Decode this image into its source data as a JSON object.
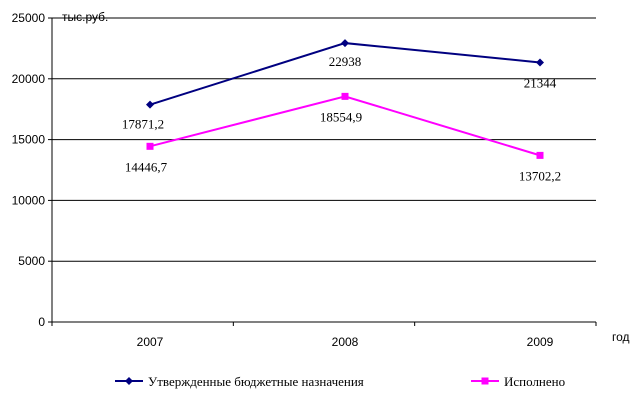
{
  "chart_data": {
    "type": "line",
    "categories": [
      "2007",
      "2008",
      "2009"
    ],
    "series": [
      {
        "name": "Утвержденные бюджетные назначения",
        "values": [
          17871.2,
          22938,
          21344
        ],
        "labels": [
          "17871,2",
          "22938",
          "21344"
        ],
        "color": "#000080",
        "marker": "diamond"
      },
      {
        "name": "Исполнено",
        "values": [
          14446.7,
          18554.9,
          13702.2
        ],
        "labels": [
          "14446,7",
          "18554,9",
          "13702,2"
        ],
        "color": "#FF00FF",
        "marker": "square"
      }
    ],
    "ylabel": "тыс.руб.",
    "xlabel": "год",
    "ylim": [
      0,
      25000
    ],
    "yticks": [
      0,
      5000,
      10000,
      15000,
      20000,
      25000
    ],
    "grid": true,
    "legend_position": "bottom"
  }
}
